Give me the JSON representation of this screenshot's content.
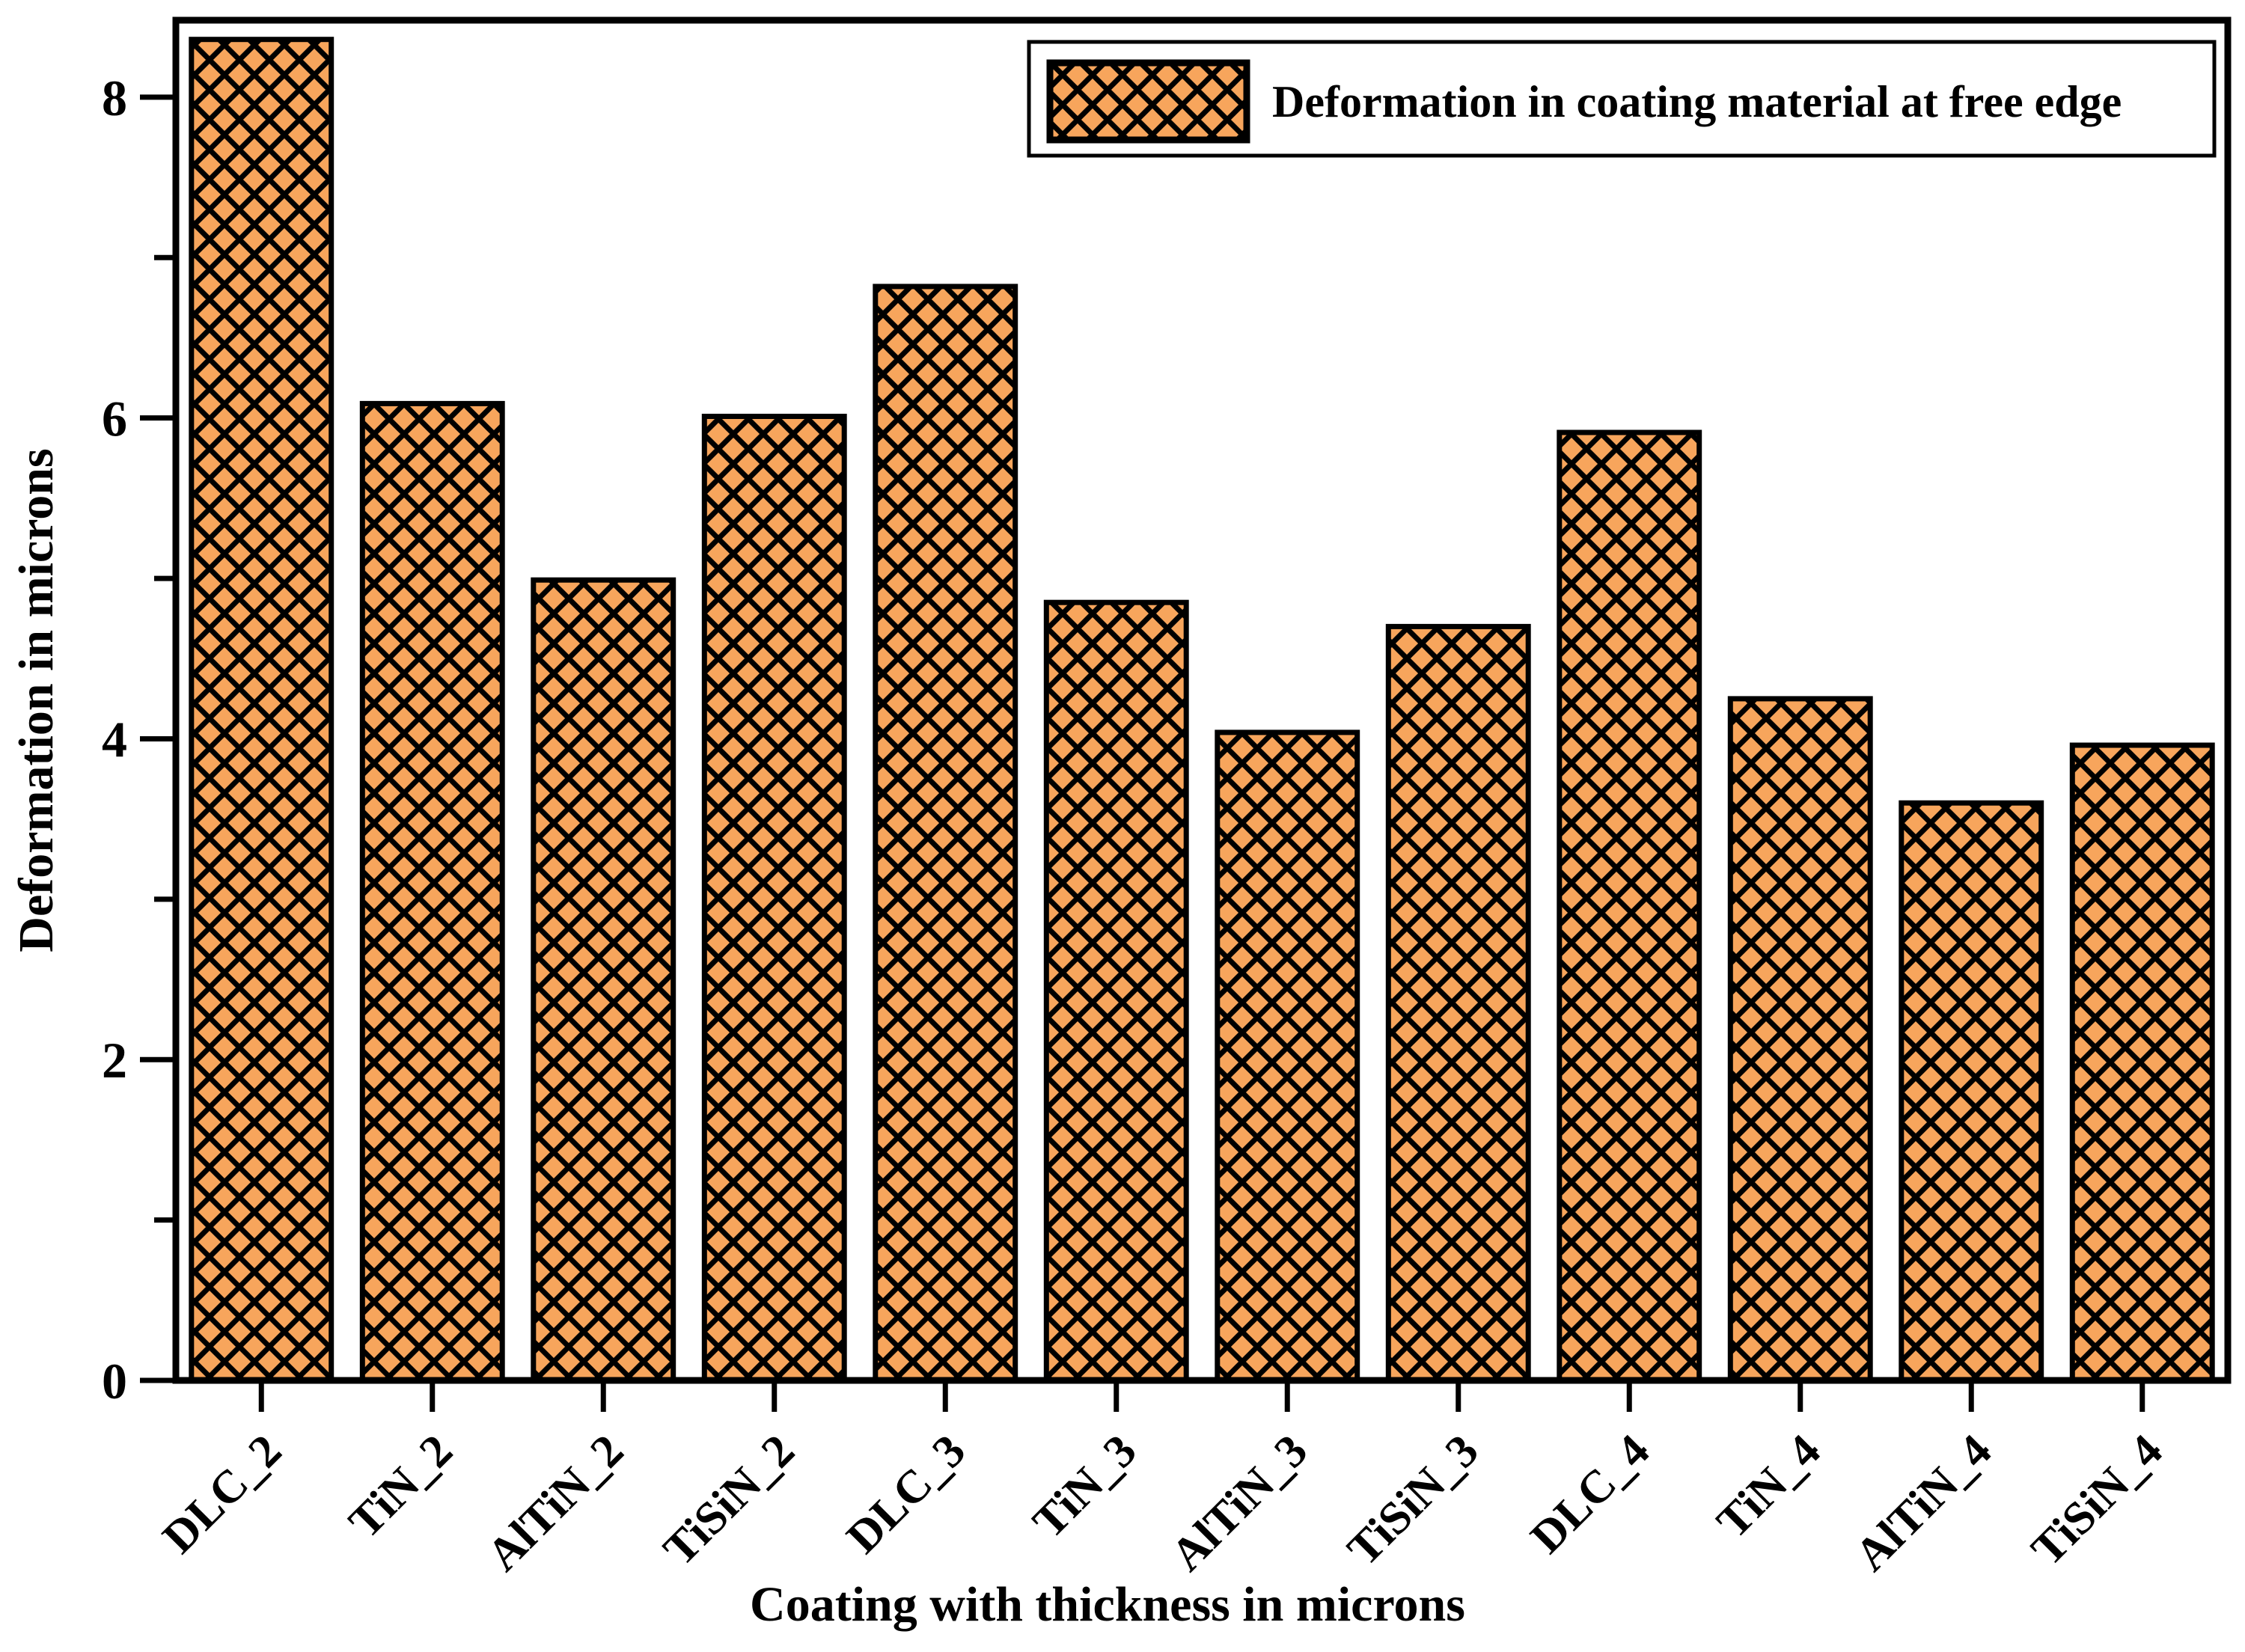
{
  "chart_data": {
    "type": "bar",
    "title": "",
    "categories": [
      "DLC_2",
      "TiN_2",
      "AlTiN_2",
      "TiSiN_2",
      "DLC_3",
      "TiN_3",
      "AlTiN_3",
      "TiSiN_3",
      "DLC_4",
      "TiN_4",
      "AlTiN_4",
      "TiSiN_4"
    ],
    "values": [
      8.36,
      6.09,
      4.99,
      6.01,
      6.82,
      4.85,
      4.04,
      4.7,
      5.91,
      4.25,
      3.6,
      3.96
    ],
    "series": [
      {
        "name": "Deformation in coating material at free edge",
        "values": [
          8.36,
          6.09,
          4.99,
          6.01,
          6.82,
          4.85,
          4.04,
          4.7,
          5.91,
          4.25,
          3.6,
          3.96
        ]
      }
    ],
    "xlabel": "Coating with thickness in microns",
    "ylabel": "Deformation in microns",
    "ylim": [
      0,
      8.48
    ],
    "yticks_major": [
      0,
      2,
      4,
      6,
      8
    ],
    "ytick_labels": [
      "0",
      "2",
      "4",
      "6",
      "8"
    ],
    "yticks_minor": [
      1,
      3,
      5,
      7
    ],
    "grid": false,
    "legend": {
      "label": "Deformation in coating material at free edge",
      "position": "top-right"
    },
    "colors": {
      "bar_fill": "#F7A55C",
      "hatch": "#000000",
      "bar_border": "#000000",
      "axis": "#000000",
      "background": "#FFFFFF"
    }
  }
}
